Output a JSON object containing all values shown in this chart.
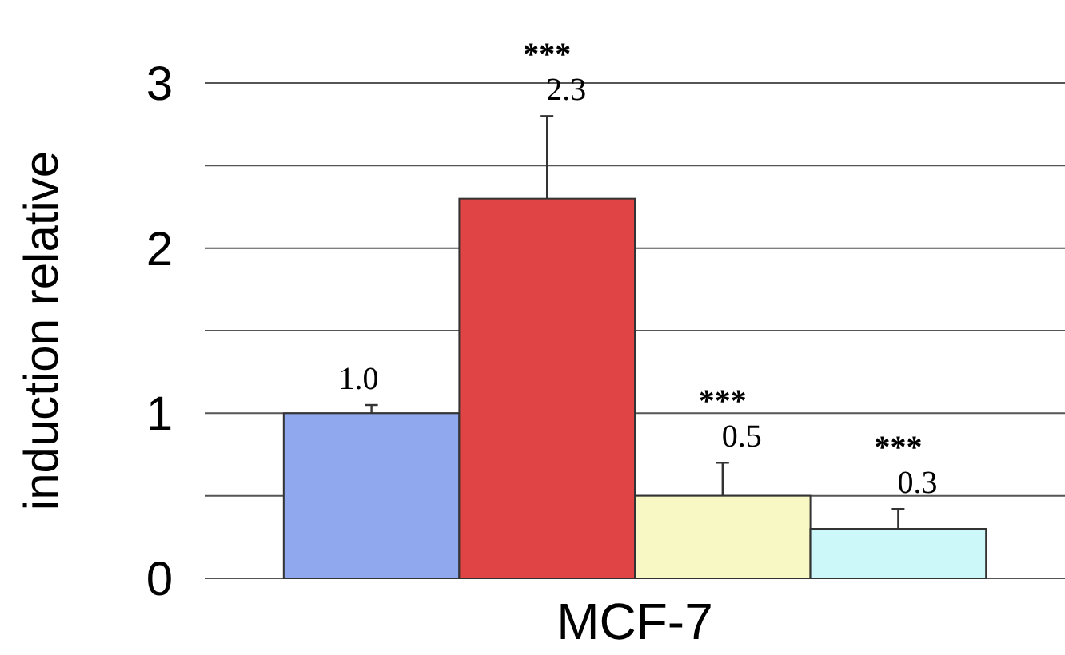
{
  "chart_data": {
    "type": "bar",
    "xlabel": "MCF-7",
    "ylabel": "induction relative",
    "categories": [
      null,
      null,
      null,
      null
    ],
    "values": [
      1.0,
      2.3,
      0.5,
      0.3
    ],
    "colors": [
      "#8fa8ee",
      "#e04444",
      "#f8f8c4",
      "#cdf8fa"
    ],
    "value_labels": [
      "1.0",
      "2.3",
      "0.5",
      "0.3"
    ],
    "errors": [
      [
        1.0,
        1.05
      ],
      [
        2.3,
        2.8
      ],
      [
        0.5,
        0.7
      ],
      [
        0.3,
        0.42
      ]
    ],
    "ylim": [
      0,
      3
    ],
    "yticks": [
      0,
      {
        "value": 0.5,
        "label": null
      },
      1,
      {
        "value": 1.5,
        "label": null
      },
      2,
      {
        "value": 2.5,
        "label": null
      },
      3
    ],
    "grid": "y",
    "annotations": [
      "***",
      "***",
      "***"
    ]
  }
}
